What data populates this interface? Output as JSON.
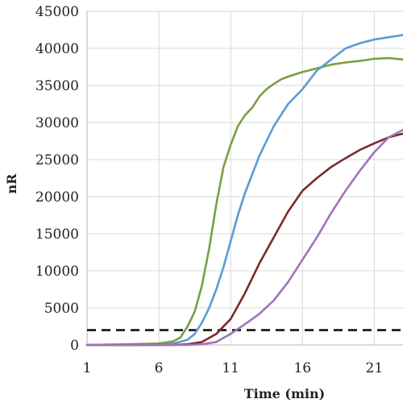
{
  "chart_data": {
    "type": "line",
    "title": "",
    "xlabel": "Time (min)",
    "ylabel": "nR",
    "xlim": [
      1,
      23
    ],
    "ylim": [
      0,
      45000
    ],
    "x_ticks": [
      1,
      6,
      11,
      16,
      21
    ],
    "y_ticks": [
      0,
      5000,
      10000,
      15000,
      20000,
      25000,
      30000,
      35000,
      40000,
      45000
    ],
    "grid": true,
    "threshold": 2000,
    "series": [
      {
        "color": "#77a043",
        "x": [
          1,
          4,
          6,
          7,
          7.5,
          8,
          8.5,
          9,
          9.5,
          10,
          10.5,
          11,
          11.5,
          12,
          12.5,
          13,
          13.5,
          14,
          14.5,
          15,
          16,
          17,
          18,
          19,
          20,
          21,
          22,
          23
        ],
        "y": [
          0,
          100,
          200,
          500,
          1000,
          2500,
          4500,
          8000,
          13000,
          19000,
          24000,
          27000,
          29500,
          31000,
          32000,
          33500,
          34500,
          35200,
          35800,
          36200,
          36800,
          37300,
          37800,
          38100,
          38300,
          38600,
          38700,
          38500
        ]
      },
      {
        "color": "#5b9bd5",
        "x": [
          1,
          6,
          7,
          8,
          8.5,
          9,
          9.5,
          10,
          10.5,
          11,
          11.5,
          12,
          13,
          14,
          15,
          16,
          17,
          18,
          19,
          20,
          21,
          22,
          23
        ],
        "y": [
          0,
          0,
          200,
          700,
          1500,
          3000,
          5000,
          7500,
          10500,
          14000,
          17500,
          20500,
          25500,
          29500,
          32500,
          34500,
          37000,
          38500,
          40000,
          40700,
          41200,
          41500,
          41800
        ]
      },
      {
        "color": "#7b2a2a",
        "x": [
          1,
          7,
          8,
          9,
          10,
          11,
          12,
          13,
          14,
          15,
          16,
          17,
          18,
          19,
          20,
          21,
          22,
          23
        ],
        "y": [
          0,
          0,
          100,
          400,
          1500,
          3500,
          7000,
          11000,
          14500,
          18000,
          20800,
          22500,
          24000,
          25200,
          26300,
          27200,
          28000,
          28500
        ]
      },
      {
        "color": "#a173b8",
        "x": [
          1,
          8,
          9,
          10,
          11,
          12,
          13,
          14,
          15,
          16,
          17,
          18,
          19,
          20,
          21,
          22,
          23
        ],
        "y": [
          0,
          0,
          100,
          400,
          1500,
          2800,
          4200,
          6000,
          8500,
          11500,
          14500,
          17800,
          20800,
          23500,
          26000,
          28000,
          29000
        ]
      }
    ]
  }
}
